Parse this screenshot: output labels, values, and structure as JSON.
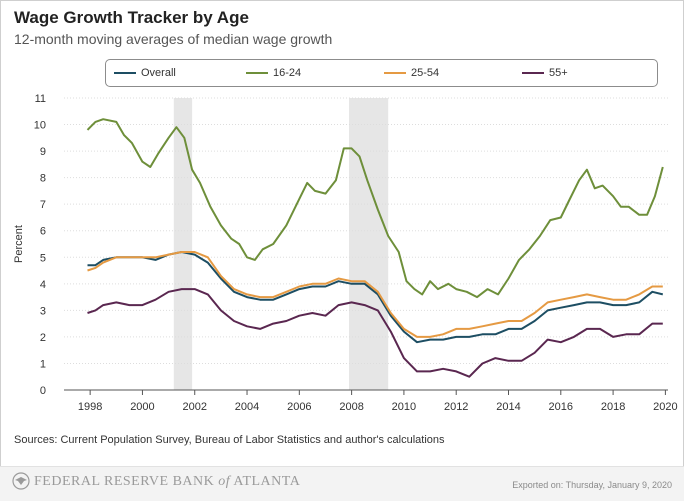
{
  "title": "Wage Growth Tracker by Age",
  "subtitle": "12-month moving averages of median wage growth",
  "sources": "Sources: Current Population Survey, Bureau of Labor Statistics and author's calculations",
  "footer": {
    "bank_prefix": "FEDERAL RESERVE BANK",
    "bank_of": "of",
    "bank_city": "ATLANTA",
    "exported": "Exported on: Thursday, January 9, 2020"
  },
  "colors": {
    "overall": "#1d4e63",
    "age_16_24": "#6e8f3a",
    "age_25_54": "#e59a43",
    "age_55_plus": "#5a2750",
    "recession": "#e6e6e6",
    "grid": "#dddddd",
    "axis": "#555555"
  },
  "chart_data": {
    "type": "line",
    "title": "Wage Growth Tracker by Age",
    "subtitle": "12-month moving averages of median wage growth",
    "xlabel": "",
    "ylabel": "Percent",
    "xlim": [
      1997,
      2020.1
    ],
    "ylim": [
      0,
      11
    ],
    "x_ticks": [
      "1998",
      "2000",
      "2002",
      "2004",
      "2006",
      "2008",
      "2010",
      "2012",
      "2014",
      "2016",
      "2018",
      "2020"
    ],
    "y_ticks": [
      "0",
      "1",
      "2",
      "3",
      "4",
      "5",
      "6",
      "7",
      "8",
      "9",
      "10",
      "11"
    ],
    "legend_position": "top",
    "grid": "horizontal",
    "recessions": [
      [
        2001.2,
        2001.9
      ],
      [
        2007.9,
        2009.4
      ]
    ],
    "series": [
      {
        "name": "Overall",
        "key": "overall",
        "points": [
          [
            1997.9,
            4.7
          ],
          [
            1998.2,
            4.7
          ],
          [
            1998.5,
            4.9
          ],
          [
            1999.0,
            5.0
          ],
          [
            1999.5,
            5.0
          ],
          [
            2000.0,
            5.0
          ],
          [
            2000.5,
            4.9
          ],
          [
            2001.0,
            5.1
          ],
          [
            2001.5,
            5.2
          ],
          [
            2002.0,
            5.1
          ],
          [
            2002.5,
            4.8
          ],
          [
            2003.0,
            4.2
          ],
          [
            2003.5,
            3.7
          ],
          [
            2004.0,
            3.5
          ],
          [
            2004.5,
            3.4
          ],
          [
            2005.0,
            3.4
          ],
          [
            2005.5,
            3.6
          ],
          [
            2006.0,
            3.8
          ],
          [
            2006.5,
            3.9
          ],
          [
            2007.0,
            3.9
          ],
          [
            2007.5,
            4.1
          ],
          [
            2008.0,
            4.0
          ],
          [
            2008.5,
            4.0
          ],
          [
            2009.0,
            3.6
          ],
          [
            2009.5,
            2.8
          ],
          [
            2010.0,
            2.2
          ],
          [
            2010.5,
            1.8
          ],
          [
            2011.0,
            1.9
          ],
          [
            2011.5,
            1.9
          ],
          [
            2012.0,
            2.0
          ],
          [
            2012.5,
            2.0
          ],
          [
            2013.0,
            2.1
          ],
          [
            2013.5,
            2.1
          ],
          [
            2014.0,
            2.3
          ],
          [
            2014.5,
            2.3
          ],
          [
            2015.0,
            2.6
          ],
          [
            2015.5,
            3.0
          ],
          [
            2016.0,
            3.1
          ],
          [
            2016.5,
            3.2
          ],
          [
            2017.0,
            3.3
          ],
          [
            2017.5,
            3.3
          ],
          [
            2018.0,
            3.2
          ],
          [
            2018.5,
            3.2
          ],
          [
            2019.0,
            3.3
          ],
          [
            2019.5,
            3.7
          ],
          [
            2019.9,
            3.6
          ]
        ]
      },
      {
        "name": "16-24",
        "key": "age_16_24",
        "points": [
          [
            1997.9,
            9.8
          ],
          [
            1998.2,
            10.1
          ],
          [
            1998.5,
            10.2
          ],
          [
            1999.0,
            10.1
          ],
          [
            1999.3,
            9.6
          ],
          [
            1999.6,
            9.3
          ],
          [
            2000.0,
            8.6
          ],
          [
            2000.3,
            8.4
          ],
          [
            2000.6,
            8.9
          ],
          [
            2001.0,
            9.5
          ],
          [
            2001.3,
            9.9
          ],
          [
            2001.6,
            9.5
          ],
          [
            2001.9,
            8.3
          ],
          [
            2002.2,
            7.8
          ],
          [
            2002.6,
            6.9
          ],
          [
            2003.0,
            6.2
          ],
          [
            2003.4,
            5.7
          ],
          [
            2003.7,
            5.5
          ],
          [
            2004.0,
            5.0
          ],
          [
            2004.3,
            4.9
          ],
          [
            2004.6,
            5.3
          ],
          [
            2005.0,
            5.5
          ],
          [
            2005.5,
            6.2
          ],
          [
            2006.0,
            7.2
          ],
          [
            2006.3,
            7.8
          ],
          [
            2006.6,
            7.5
          ],
          [
            2007.0,
            7.4
          ],
          [
            2007.4,
            7.9
          ],
          [
            2007.7,
            9.1
          ],
          [
            2008.0,
            9.1
          ],
          [
            2008.3,
            8.8
          ],
          [
            2008.6,
            7.9
          ],
          [
            2009.0,
            6.8
          ],
          [
            2009.4,
            5.8
          ],
          [
            2009.8,
            5.2
          ],
          [
            2010.1,
            4.1
          ],
          [
            2010.4,
            3.8
          ],
          [
            2010.7,
            3.6
          ],
          [
            2011.0,
            4.1
          ],
          [
            2011.3,
            3.8
          ],
          [
            2011.7,
            4.0
          ],
          [
            2012.0,
            3.8
          ],
          [
            2012.4,
            3.7
          ],
          [
            2012.8,
            3.5
          ],
          [
            2013.2,
            3.8
          ],
          [
            2013.6,
            3.6
          ],
          [
            2014.0,
            4.2
          ],
          [
            2014.4,
            4.9
          ],
          [
            2014.8,
            5.3
          ],
          [
            2015.2,
            5.8
          ],
          [
            2015.6,
            6.4
          ],
          [
            2016.0,
            6.5
          ],
          [
            2016.3,
            7.1
          ],
          [
            2016.7,
            7.9
          ],
          [
            2017.0,
            8.3
          ],
          [
            2017.3,
            7.6
          ],
          [
            2017.6,
            7.7
          ],
          [
            2018.0,
            7.3
          ],
          [
            2018.3,
            6.9
          ],
          [
            2018.6,
            6.9
          ],
          [
            2019.0,
            6.6
          ],
          [
            2019.3,
            6.6
          ],
          [
            2019.6,
            7.3
          ],
          [
            2019.9,
            8.4
          ]
        ]
      },
      {
        "name": "25-54",
        "key": "age_25_54",
        "points": [
          [
            1997.9,
            4.5
          ],
          [
            1998.2,
            4.6
          ],
          [
            1998.5,
            4.8
          ],
          [
            1999.0,
            5.0
          ],
          [
            1999.5,
            5.0
          ],
          [
            2000.0,
            5.0
          ],
          [
            2000.5,
            5.0
          ],
          [
            2001.0,
            5.1
          ],
          [
            2001.5,
            5.2
          ],
          [
            2002.0,
            5.2
          ],
          [
            2002.5,
            5.0
          ],
          [
            2003.0,
            4.3
          ],
          [
            2003.5,
            3.8
          ],
          [
            2004.0,
            3.6
          ],
          [
            2004.5,
            3.5
          ],
          [
            2005.0,
            3.5
          ],
          [
            2005.5,
            3.7
          ],
          [
            2006.0,
            3.9
          ],
          [
            2006.5,
            4.0
          ],
          [
            2007.0,
            4.0
          ],
          [
            2007.5,
            4.2
          ],
          [
            2008.0,
            4.1
          ],
          [
            2008.5,
            4.1
          ],
          [
            2009.0,
            3.7
          ],
          [
            2009.5,
            2.9
          ],
          [
            2010.0,
            2.3
          ],
          [
            2010.5,
            2.0
          ],
          [
            2011.0,
            2.0
          ],
          [
            2011.5,
            2.1
          ],
          [
            2012.0,
            2.3
          ],
          [
            2012.5,
            2.3
          ],
          [
            2013.0,
            2.4
          ],
          [
            2013.5,
            2.5
          ],
          [
            2014.0,
            2.6
          ],
          [
            2014.5,
            2.6
          ],
          [
            2015.0,
            2.9
          ],
          [
            2015.5,
            3.3
          ],
          [
            2016.0,
            3.4
          ],
          [
            2016.5,
            3.5
          ],
          [
            2017.0,
            3.6
          ],
          [
            2017.5,
            3.5
          ],
          [
            2018.0,
            3.4
          ],
          [
            2018.5,
            3.4
          ],
          [
            2019.0,
            3.6
          ],
          [
            2019.5,
            3.9
          ],
          [
            2019.9,
            3.9
          ]
        ]
      },
      {
        "name": "55+",
        "key": "age_55_plus",
        "points": [
          [
            1997.9,
            2.9
          ],
          [
            1998.2,
            3.0
          ],
          [
            1998.5,
            3.2
          ],
          [
            1999.0,
            3.3
          ],
          [
            1999.5,
            3.2
          ],
          [
            2000.0,
            3.2
          ],
          [
            2000.5,
            3.4
          ],
          [
            2001.0,
            3.7
          ],
          [
            2001.5,
            3.8
          ],
          [
            2002.0,
            3.8
          ],
          [
            2002.5,
            3.6
          ],
          [
            2003.0,
            3.0
          ],
          [
            2003.5,
            2.6
          ],
          [
            2004.0,
            2.4
          ],
          [
            2004.5,
            2.3
          ],
          [
            2005.0,
            2.5
          ],
          [
            2005.5,
            2.6
          ],
          [
            2006.0,
            2.8
          ],
          [
            2006.5,
            2.9
          ],
          [
            2007.0,
            2.8
          ],
          [
            2007.5,
            3.2
          ],
          [
            2008.0,
            3.3
          ],
          [
            2008.5,
            3.2
          ],
          [
            2009.0,
            3.0
          ],
          [
            2009.5,
            2.2
          ],
          [
            2010.0,
            1.2
          ],
          [
            2010.5,
            0.7
          ],
          [
            2011.0,
            0.7
          ],
          [
            2011.5,
            0.8
          ],
          [
            2012.0,
            0.7
          ],
          [
            2012.5,
            0.5
          ],
          [
            2013.0,
            1.0
          ],
          [
            2013.5,
            1.2
          ],
          [
            2014.0,
            1.1
          ],
          [
            2014.5,
            1.1
          ],
          [
            2015.0,
            1.4
          ],
          [
            2015.5,
            1.9
          ],
          [
            2016.0,
            1.8
          ],
          [
            2016.5,
            2.0
          ],
          [
            2017.0,
            2.3
          ],
          [
            2017.5,
            2.3
          ],
          [
            2018.0,
            2.0
          ],
          [
            2018.5,
            2.1
          ],
          [
            2019.0,
            2.1
          ],
          [
            2019.5,
            2.5
          ],
          [
            2019.9,
            2.5
          ]
        ]
      }
    ]
  }
}
